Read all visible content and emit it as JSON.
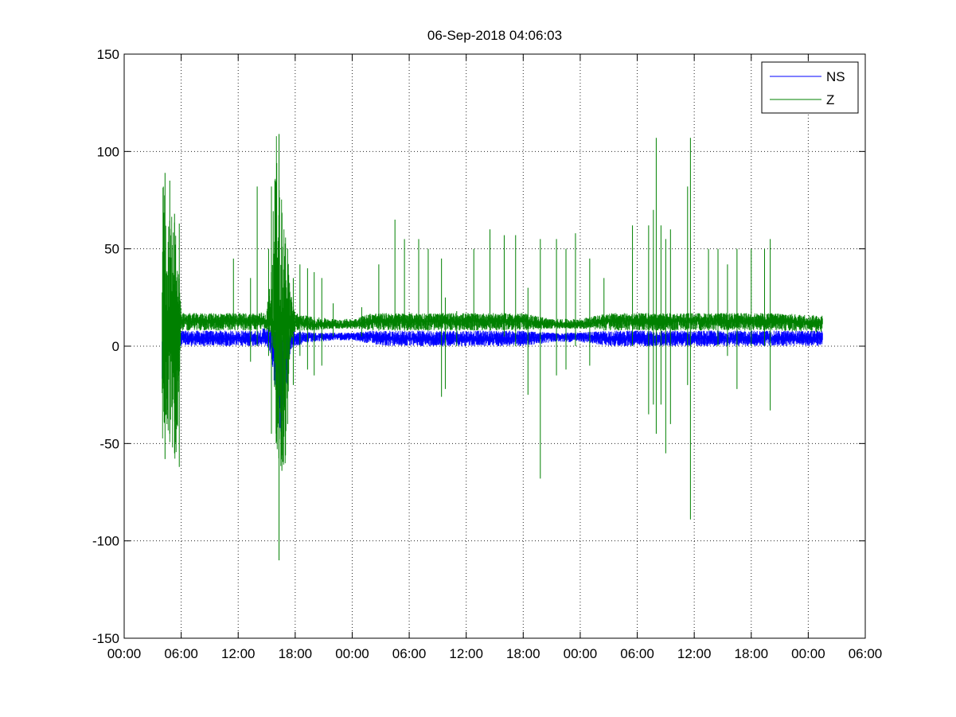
{
  "chart_data": {
    "type": "line",
    "title": "06-Sep-2018 04:06:03",
    "xlabel": "",
    "ylabel": "",
    "grid": true,
    "legend_position": "top-right",
    "xlim_hours": [
      0,
      78
    ],
    "ylim": [
      -150,
      150
    ],
    "x_ticks": [
      {
        "hour": 0,
        "label": "00:00"
      },
      {
        "hour": 6,
        "label": "06:00"
      },
      {
        "hour": 12,
        "label": "12:00"
      },
      {
        "hour": 18,
        "label": "18:00"
      },
      {
        "hour": 24,
        "label": "00:00"
      },
      {
        "hour": 30,
        "label": "06:00"
      },
      {
        "hour": 36,
        "label": "12:00"
      },
      {
        "hour": 42,
        "label": "18:00"
      },
      {
        "hour": 48,
        "label": "00:00"
      },
      {
        "hour": 54,
        "label": "06:00"
      },
      {
        "hour": 60,
        "label": "12:00"
      },
      {
        "hour": 66,
        "label": "18:00"
      },
      {
        "hour": 72,
        "label": "00:00"
      },
      {
        "hour": 78,
        "label": "06:00"
      }
    ],
    "y_ticks": [
      {
        "value": 150,
        "label": "150"
      },
      {
        "value": 100,
        "label": "100"
      },
      {
        "value": 50,
        "label": "50"
      },
      {
        "value": 0,
        "label": "0"
      },
      {
        "value": -50,
        "label": "-50"
      },
      {
        "value": -100,
        "label": "-100"
      },
      {
        "value": -150,
        "label": "-150"
      }
    ],
    "series": [
      {
        "name": "NS",
        "color": "#0000ff",
        "x_hours": [
          4.0,
          4.2,
          4.5,
          5.0,
          5.5,
          6.0,
          8.0,
          10.0,
          12.0,
          14.0,
          15.0,
          15.5,
          16.0,
          16.5,
          17.0,
          17.5,
          18.0,
          20.0,
          22.0,
          24.0,
          26.0,
          28.0,
          30.0,
          33.0,
          36.0,
          39.0,
          42.0,
          45.0,
          48.0,
          51.0,
          54.0,
          57.0,
          60.0,
          63.0,
          66.0,
          69.0,
          72.0,
          73.5
        ],
        "y_center": [
          -5,
          2,
          3,
          4,
          4,
          4,
          4,
          4,
          4,
          4,
          5,
          2,
          -8,
          -20,
          -10,
          3,
          4,
          5,
          5,
          5,
          5,
          4,
          4,
          4,
          4,
          4,
          4,
          5,
          5,
          4,
          4,
          4,
          4,
          4,
          4,
          4,
          4,
          4
        ],
        "y_low": [
          -20,
          -5,
          -2,
          -1,
          -1,
          0,
          0,
          0,
          0,
          0,
          0,
          -5,
          -30,
          -45,
          -25,
          -2,
          0,
          2,
          3,
          3,
          1,
          0,
          0,
          0,
          0,
          0,
          0,
          2,
          2,
          0,
          0,
          0,
          0,
          0,
          0,
          0,
          0,
          0
        ],
        "y_high": [
          10,
          8,
          8,
          8,
          8,
          8,
          8,
          8,
          8,
          8,
          10,
          10,
          12,
          10,
          8,
          8,
          8,
          7,
          7,
          7,
          8,
          8,
          8,
          8,
          8,
          8,
          8,
          7,
          7,
          8,
          8,
          8,
          8,
          8,
          8,
          8,
          8,
          8
        ]
      },
      {
        "name": "Z",
        "color": "#008000",
        "x_hours": [
          4.0,
          4.2,
          4.5,
          5.0,
          5.5,
          6.0,
          8.0,
          10.0,
          12.0,
          14.0,
          15.0,
          15.5,
          16.0,
          16.5,
          17.0,
          17.5,
          18.0,
          20.0,
          22.0,
          24.0,
          26.0,
          28.0,
          30.0,
          33.0,
          36.0,
          39.0,
          42.0,
          45.0,
          48.0,
          51.0,
          54.0,
          57.0,
          60.0,
          63.0,
          66.0,
          69.0,
          72.0,
          73.5
        ],
        "y_center": [
          10,
          12,
          12,
          12,
          12,
          13,
          13,
          13,
          13,
          13,
          12,
          12,
          10,
          10,
          11,
          12,
          12,
          11,
          11,
          11,
          13,
          13,
          13,
          13,
          13,
          13,
          13,
          11,
          11,
          13,
          13,
          13,
          13,
          13,
          13,
          13,
          12,
          12
        ],
        "y_low": [
          -58,
          -40,
          -50,
          -55,
          -62,
          8,
          8,
          8,
          8,
          8,
          8,
          5,
          -50,
          -65,
          -60,
          0,
          8,
          8,
          9,
          9,
          8,
          8,
          8,
          8,
          8,
          8,
          8,
          9,
          9,
          8,
          8,
          8,
          8,
          8,
          8,
          8,
          7,
          7
        ],
        "y_high": [
          89,
          88,
          62,
          68,
          62,
          17,
          17,
          17,
          17,
          17,
          18,
          45,
          110,
          80,
          60,
          30,
          17,
          15,
          14,
          14,
          17,
          17,
          17,
          17,
          17,
          17,
          17,
          14,
          14,
          17,
          17,
          17,
          17,
          17,
          17,
          17,
          16,
          16
        ]
      }
    ],
    "spikes": [
      {
        "series": "Z",
        "x_hour": 4.3,
        "min": -58,
        "max": 89
      },
      {
        "series": "Z",
        "x_hour": 4.8,
        "min": -45,
        "max": 85
      },
      {
        "series": "Z",
        "x_hour": 5.3,
        "min": -55,
        "max": 68
      },
      {
        "series": "Z",
        "x_hour": 5.8,
        "min": -62,
        "max": 63
      },
      {
        "series": "Z",
        "x_hour": 11.5,
        "min": 10,
        "max": 45
      },
      {
        "series": "Z",
        "x_hour": 13.3,
        "min": -8,
        "max": 35
      },
      {
        "series": "Z",
        "x_hour": 14.0,
        "min": 0,
        "max": 82
      },
      {
        "series": "Z",
        "x_hour": 15.2,
        "min": -5,
        "max": 50
      },
      {
        "series": "Z",
        "x_hour": 15.5,
        "min": -45,
        "max": 82
      },
      {
        "series": "Z",
        "x_hour": 16.0,
        "min": -50,
        "max": 85
      },
      {
        "series": "Z",
        "x_hour": 16.3,
        "min": -110,
        "max": 109
      },
      {
        "series": "Z",
        "x_hour": 16.6,
        "min": -64,
        "max": 68
      },
      {
        "series": "Z",
        "x_hour": 17.2,
        "min": -40,
        "max": 50
      },
      {
        "series": "Z",
        "x_hour": 17.8,
        "min": -20,
        "max": 35
      },
      {
        "series": "Z",
        "x_hour": 18.5,
        "min": -5,
        "max": 42
      },
      {
        "series": "Z",
        "x_hour": 19.3,
        "min": -12,
        "max": 40
      },
      {
        "series": "Z",
        "x_hour": 20.0,
        "min": -15,
        "max": 38
      },
      {
        "series": "Z",
        "x_hour": 20.8,
        "min": -10,
        "max": 35
      },
      {
        "series": "Z",
        "x_hour": 22.0,
        "min": 5,
        "max": 22
      },
      {
        "series": "Z",
        "x_hour": 25.0,
        "min": 5,
        "max": 20
      },
      {
        "series": "Z",
        "x_hour": 26.8,
        "min": 8,
        "max": 42
      },
      {
        "series": "Z",
        "x_hour": 28.5,
        "min": 8,
        "max": 65
      },
      {
        "series": "Z",
        "x_hour": 29.5,
        "min": 8,
        "max": 55
      },
      {
        "series": "Z",
        "x_hour": 31.0,
        "min": 8,
        "max": 55
      },
      {
        "series": "Z",
        "x_hour": 32.0,
        "min": 8,
        "max": 50
      },
      {
        "series": "Z",
        "x_hour": 33.4,
        "min": -26,
        "max": 45
      },
      {
        "series": "Z",
        "x_hour": 33.8,
        "min": -22,
        "max": 25
      },
      {
        "series": "Z",
        "x_hour": 35.0,
        "min": 0,
        "max": 18
      },
      {
        "series": "Z",
        "x_hour": 36.8,
        "min": 8,
        "max": 50
      },
      {
        "series": "Z",
        "x_hour": 38.5,
        "min": 8,
        "max": 60
      },
      {
        "series": "Z",
        "x_hour": 40.0,
        "min": 5,
        "max": 57
      },
      {
        "series": "Z",
        "x_hour": 41.2,
        "min": 0,
        "max": 57
      },
      {
        "series": "Z",
        "x_hour": 42.5,
        "min": -25,
        "max": 30
      },
      {
        "series": "Z",
        "x_hour": 43.8,
        "min": -68,
        "max": 55
      },
      {
        "series": "Z",
        "x_hour": 45.5,
        "min": -15,
        "max": 55
      },
      {
        "series": "Z",
        "x_hour": 46.5,
        "min": -12,
        "max": 50
      },
      {
        "series": "Z",
        "x_hour": 47.5,
        "min": 0,
        "max": 58
      },
      {
        "series": "Z",
        "x_hour": 49.0,
        "min": -10,
        "max": 45
      },
      {
        "series": "Z",
        "x_hour": 50.5,
        "min": 8,
        "max": 35
      },
      {
        "series": "Z",
        "x_hour": 53.5,
        "min": 0,
        "max": 62
      },
      {
        "series": "Z",
        "x_hour": 55.2,
        "min": -35,
        "max": 62
      },
      {
        "series": "Z",
        "x_hour": 55.7,
        "min": -30,
        "max": 70
      },
      {
        "series": "Z",
        "x_hour": 56.0,
        "min": -45,
        "max": 107
      },
      {
        "series": "Z",
        "x_hour": 56.5,
        "min": -30,
        "max": 62
      },
      {
        "series": "Z",
        "x_hour": 57.0,
        "min": -55,
        "max": 55
      },
      {
        "series": "Z",
        "x_hour": 57.5,
        "min": -40,
        "max": 60
      },
      {
        "series": "Z",
        "x_hour": 59.3,
        "min": -20,
        "max": 82
      },
      {
        "series": "Z",
        "x_hour": 59.6,
        "min": -89,
        "max": 107
      },
      {
        "series": "Z",
        "x_hour": 61.5,
        "min": 8,
        "max": 50
      },
      {
        "series": "Z",
        "x_hour": 62.5,
        "min": 0,
        "max": 50
      },
      {
        "series": "Z",
        "x_hour": 63.5,
        "min": -5,
        "max": 42
      },
      {
        "series": "Z",
        "x_hour": 64.5,
        "min": -22,
        "max": 50
      },
      {
        "series": "Z",
        "x_hour": 66.0,
        "min": 0,
        "max": 50
      },
      {
        "series": "Z",
        "x_hour": 67.4,
        "min": 0,
        "max": 50
      },
      {
        "series": "Z",
        "x_hour": 68.0,
        "min": -33,
        "max": 55
      }
    ]
  }
}
